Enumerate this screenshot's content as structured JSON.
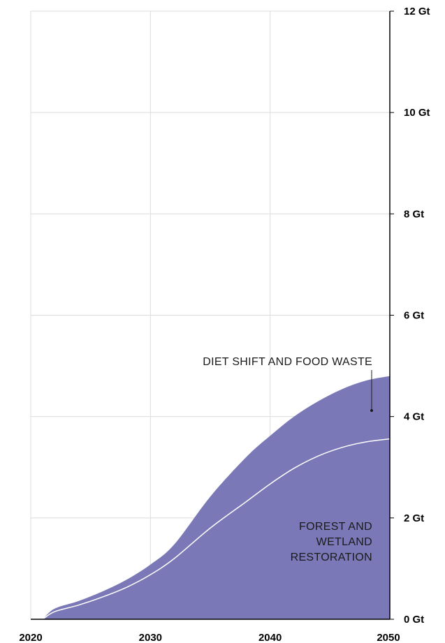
{
  "chart_data": {
    "type": "area",
    "title": "",
    "xlabel": "",
    "ylabel": "",
    "xlim": [
      2020,
      2050
    ],
    "ylim": [
      0,
      12
    ],
    "x_ticks": [
      {
        "value": 2020,
        "label": "2020"
      },
      {
        "value": 2030,
        "label": "2030"
      },
      {
        "value": 2040,
        "label": "2040"
      },
      {
        "value": 2050,
        "label": "2050"
      }
    ],
    "y_ticks": [
      {
        "value": 0,
        "label": "0 Gt"
      },
      {
        "value": 2,
        "label": "2 Gt"
      },
      {
        "value": 4,
        "label": "4 Gt"
      },
      {
        "value": 6,
        "label": "6 Gt"
      },
      {
        "value": 8,
        "label": "8 Gt"
      },
      {
        "value": 10,
        "label": "10 Gt"
      },
      {
        "value": 12,
        "label": "12 Gt"
      }
    ],
    "grid": true,
    "stacked": true,
    "x": [
      2021,
      2022,
      2024,
      2026,
      2028,
      2030,
      2032,
      2035,
      2038,
      2040,
      2042,
      2044,
      2046,
      2048,
      2050
    ],
    "series": [
      {
        "name": "FOREST AND WETLAND RESTORATION",
        "color": "#7a78b6",
        "values": [
          0,
          0.15,
          0.28,
          0.44,
          0.63,
          0.88,
          1.2,
          1.8,
          2.32,
          2.67,
          2.98,
          3.22,
          3.39,
          3.5,
          3.56
        ]
      },
      {
        "name": "DIET SHIFT AND FOOD WASTE",
        "color": "#7a78b6",
        "values": [
          0,
          0.06,
          0.08,
          0.11,
          0.15,
          0.2,
          0.28,
          0.62,
          0.88,
          0.95,
          1.02,
          1.08,
          1.15,
          1.21,
          1.24
        ]
      }
    ],
    "annotations": [
      {
        "text": "DIET SHIFT AND FOOD WASTE",
        "series": "DIET SHIFT AND FOOD WASTE"
      },
      {
        "lines": [
          "FOREST AND",
          "WETLAND",
          "RESTORATION"
        ],
        "series": "FOREST AND WETLAND RESTORATION"
      }
    ]
  }
}
